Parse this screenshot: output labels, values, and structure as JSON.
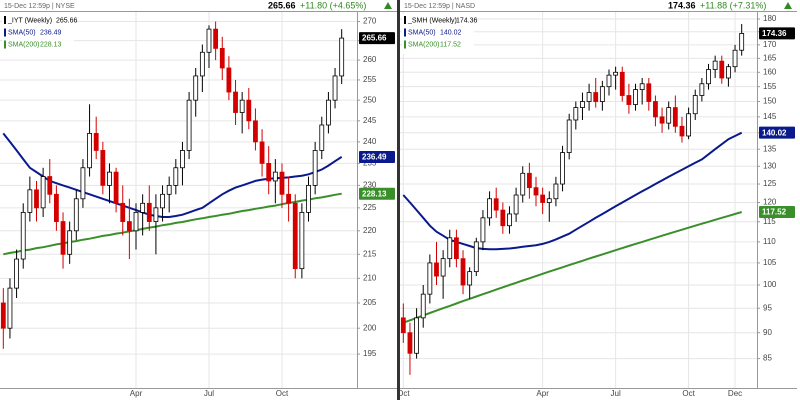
{
  "chart_data": [
    {
      "type": "candlestick",
      "symbol": "_IYT (Weekly)",
      "header_date": "15-Dec 12:59p | NYSE",
      "change": "+11.80 (+4.65%)",
      "up_color": "#000000",
      "down_color": "#d40000",
      "change_color": "#2e8b1f",
      "log_scale": true,
      "grid": true,
      "ylim": [
        189,
        272
      ],
      "yticks": [
        195,
        200,
        205,
        210,
        215,
        220,
        225,
        230,
        235,
        240,
        245,
        250,
        255,
        260,
        265,
        270
      ],
      "categories": [
        null,
        null,
        null,
        null,
        null,
        null,
        null,
        null,
        null,
        null,
        null,
        null,
        null,
        null,
        null,
        null,
        null,
        null,
        null,
        null,
        "Apr",
        null,
        null,
        null,
        null,
        null,
        null,
        null,
        null,
        null,
        null,
        "Jul",
        null,
        null,
        null,
        null,
        null,
        null,
        null,
        null,
        null,
        null,
        "Oct",
        null,
        null,
        null,
        null,
        null,
        null,
        null,
        null,
        null
      ],
      "ohlc": [
        [
          205,
          208,
          196,
          200
        ],
        [
          200,
          210,
          198,
          208
        ],
        [
          208,
          216,
          206,
          214
        ],
        [
          214,
          226,
          212,
          224
        ],
        [
          224,
          232,
          222,
          229
        ],
        [
          229,
          231,
          222,
          225
        ],
        [
          225,
          234,
          223,
          232
        ],
        [
          232,
          236,
          226,
          228
        ],
        [
          228,
          230,
          220,
          222
        ],
        [
          222,
          224,
          212,
          215
        ],
        [
          215,
          222,
          213,
          220
        ],
        [
          220,
          229,
          218,
          227
        ],
        [
          227,
          236,
          225,
          234
        ],
        [
          234,
          249,
          232,
          242
        ],
        [
          242,
          246,
          236,
          238
        ],
        [
          238,
          240,
          228,
          230
        ],
        [
          230,
          235,
          226,
          233
        ],
        [
          233,
          234,
          224,
          226
        ],
        [
          226,
          230,
          219,
          222
        ],
        [
          222,
          227,
          214,
          220
        ],
        [
          220,
          226,
          216,
          224
        ],
        [
          224,
          228,
          219,
          226
        ],
        [
          226,
          230,
          220,
          222
        ],
        [
          222,
          228,
          215,
          225
        ],
        [
          225,
          230,
          222,
          228
        ],
        [
          228,
          232,
          224,
          230
        ],
        [
          230,
          236,
          228,
          234
        ],
        [
          234,
          240,
          230,
          238
        ],
        [
          238,
          252,
          236,
          250
        ],
        [
          250,
          258,
          246,
          256
        ],
        [
          256,
          264,
          252,
          262
        ],
        [
          262,
          269,
          258,
          268
        ],
        [
          268,
          270,
          260,
          263
        ],
        [
          263,
          266,
          255,
          258
        ],
        [
          258,
          261,
          250,
          252
        ],
        [
          252,
          255,
          244,
          247
        ],
        [
          247,
          252,
          242,
          250
        ],
        [
          250,
          253,
          243,
          245
        ],
        [
          245,
          248,
          238,
          240
        ],
        [
          240,
          243,
          232,
          235
        ],
        [
          235,
          239,
          228,
          231
        ],
        [
          231,
          236,
          226,
          233
        ],
        [
          233,
          235,
          225,
          228
        ],
        [
          228,
          232,
          222,
          226
        ],
        [
          226,
          228,
          210,
          212
        ],
        [
          212,
          226,
          210,
          224
        ],
        [
          224,
          232,
          222,
          230
        ],
        [
          230,
          240,
          228,
          238
        ],
        [
          238,
          246,
          236,
          244
        ],
        [
          244,
          252,
          242,
          250
        ],
        [
          250,
          258,
          248,
          256
        ],
        [
          256,
          268,
          254,
          265.66
        ]
      ],
      "series": [
        {
          "name": "SMA(50)",
          "color": "#0a1a8c",
          "values": [
            242,
            240,
            238,
            236,
            234,
            233,
            232,
            231,
            230.5,
            230,
            229.5,
            229,
            228.5,
            228,
            227.5,
            227,
            226.5,
            226,
            225.5,
            225,
            224.5,
            224,
            223.5,
            223.2,
            223,
            223,
            223.2,
            223.5,
            224,
            224.5,
            225,
            226,
            227,
            228,
            228.8,
            229.5,
            230,
            230.5,
            231,
            231.3,
            231.5,
            231.6,
            231.7,
            231.8,
            232,
            232.2,
            232.5,
            233,
            233.6,
            234.5,
            235.5,
            236.49
          ]
        },
        {
          "name": "SMA(200)",
          "color": "#3a8f2a",
          "values": [
            215.0,
            215.3,
            215.5,
            215.8,
            216.0,
            216.3,
            216.5,
            216.8,
            217.1,
            217.3,
            217.6,
            217.8,
            218.1,
            218.3,
            218.6,
            218.9,
            219.1,
            219.4,
            219.6,
            219.9,
            220.1,
            220.4,
            220.7,
            220.9,
            221.2,
            221.4,
            221.7,
            221.9,
            222.2,
            222.5,
            222.7,
            223.0,
            223.2,
            223.5,
            223.7,
            224.0,
            224.3,
            224.5,
            224.8,
            225.0,
            225.3,
            225.5,
            225.8,
            226.1,
            226.3,
            226.6,
            226.8,
            227.1,
            227.3,
            227.6,
            227.9,
            228.13
          ]
        }
      ]
    },
    {
      "type": "candlestick",
      "symbol": "_SMH (Weekly)",
      "header_date": "15-Dec 12:59p | NASD",
      "change": "+11.88 (+7.31%)",
      "up_color": "#000000",
      "down_color": "#d40000",
      "change_color": "#2e8b1f",
      "log_scale": true,
      "grid": true,
      "ylim": [
        80,
        182
      ],
      "yticks": [
        85,
        90,
        95,
        100,
        105,
        110,
        115,
        120,
        125,
        130,
        135,
        140,
        145,
        150,
        155,
        160,
        165,
        170,
        175,
        180
      ],
      "categories": [
        "Oct",
        null,
        null,
        null,
        null,
        null,
        null,
        null,
        null,
        null,
        null,
        null,
        null,
        null,
        null,
        null,
        null,
        null,
        null,
        null,
        null,
        "Apr",
        null,
        null,
        null,
        null,
        null,
        null,
        null,
        null,
        null,
        null,
        "Jul",
        null,
        null,
        null,
        null,
        null,
        null,
        null,
        null,
        null,
        null,
        "Oct",
        null,
        null,
        null,
        null,
        null,
        null,
        "Dec",
        null
      ],
      "ohlc": [
        [
          93,
          96,
          88,
          90
        ],
        [
          90,
          92,
          82,
          86
        ],
        [
          86,
          95,
          85,
          93
        ],
        [
          93,
          100,
          91,
          98
        ],
        [
          98,
          107,
          96,
          105
        ],
        [
          105,
          110,
          100,
          102
        ],
        [
          102,
          108,
          97,
          106
        ],
        [
          106,
          113,
          104,
          111
        ],
        [
          111,
          113,
          104,
          106
        ],
        [
          106,
          108,
          98,
          100
        ],
        [
          100,
          104,
          97,
          103
        ],
        [
          103,
          111,
          102,
          110
        ],
        [
          110,
          118,
          108,
          116
        ],
        [
          116,
          123,
          114,
          121
        ],
        [
          121,
          124,
          116,
          118
        ],
        [
          118,
          120,
          112,
          114
        ],
        [
          114,
          119,
          112,
          117
        ],
        [
          117,
          124,
          115,
          122
        ],
        [
          122,
          130,
          120,
          128
        ],
        [
          128,
          131,
          121,
          124
        ],
        [
          124,
          127,
          119,
          122
        ],
        [
          122,
          124,
          117,
          120
        ],
        [
          120,
          123,
          115,
          121
        ],
        [
          121,
          127,
          119,
          125
        ],
        [
          125,
          136,
          123,
          134
        ],
        [
          134,
          146,
          132,
          144
        ],
        [
          144,
          150,
          141,
          148
        ],
        [
          148,
          153,
          144,
          150
        ],
        [
          150,
          156,
          147,
          153
        ],
        [
          153,
          158,
          148,
          150
        ],
        [
          150,
          157,
          147,
          155
        ],
        [
          155,
          161,
          152,
          159
        ],
        [
          159,
          162,
          154,
          160
        ],
        [
          160,
          162,
          150,
          152
        ],
        [
          152,
          156,
          146,
          149
        ],
        [
          149,
          156,
          147,
          154
        ],
        [
          154,
          158,
          149,
          156
        ],
        [
          156,
          158,
          147,
          150
        ],
        [
          150,
          152,
          142,
          145
        ],
        [
          145,
          148,
          140,
          143
        ],
        [
          143,
          150,
          141,
          148
        ],
        [
          148,
          152,
          140,
          142
        ],
        [
          142,
          145,
          137,
          139
        ],
        [
          139,
          148,
          138,
          146
        ],
        [
          146,
          154,
          144,
          152
        ],
        [
          152,
          158,
          150,
          156
        ],
        [
          156,
          163,
          154,
          161
        ],
        [
          161,
          166,
          158,
          164
        ],
        [
          164,
          166,
          156,
          158
        ],
        [
          158,
          163,
          155,
          162
        ],
        [
          162,
          170,
          160,
          168
        ],
        [
          168,
          178,
          166,
          174.36
        ]
      ],
      "series": [
        {
          "name": "SMA(50)",
          "color": "#0a1a8c",
          "values": [
            122,
            120,
            118,
            116,
            114,
            112.5,
            111.5,
            110.5,
            110,
            109.5,
            109,
            108.5,
            108.3,
            108.2,
            108.2,
            108.3,
            108.4,
            108.6,
            108.8,
            109,
            109.2,
            109.5,
            110,
            110.6,
            111.3,
            112,
            113,
            114,
            115,
            116,
            117,
            118,
            119,
            120,
            121,
            122,
            123,
            124,
            125,
            126,
            127,
            128,
            129,
            130,
            131,
            132,
            133.5,
            135,
            136.5,
            138,
            139,
            140.02
          ]
        },
        {
          "name": "SMA(200)",
          "color": "#3a8f2a",
          "values": [
            92,
            92.5,
            93,
            93.5,
            94,
            94.5,
            95,
            95.5,
            96,
            96.5,
            97,
            97.5,
            98,
            98.5,
            99,
            99.5,
            100,
            100.5,
            101,
            101.5,
            102,
            102.5,
            103,
            103.5,
            104,
            104.5,
            105,
            105.5,
            106,
            106.5,
            107,
            107.5,
            108,
            108.5,
            109,
            109.5,
            110,
            110.5,
            111,
            111.5,
            112,
            112.5,
            113,
            113.5,
            114,
            114.5,
            115,
            115.5,
            116,
            116.5,
            117,
            117.52
          ]
        }
      ]
    }
  ]
}
